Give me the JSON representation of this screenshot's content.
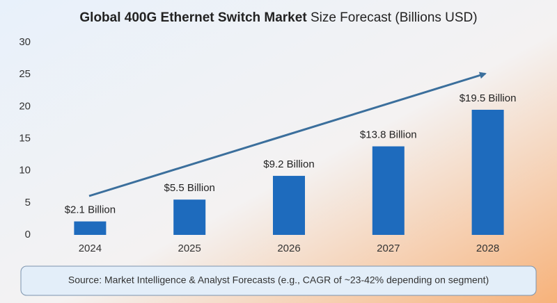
{
  "chart_data": {
    "type": "bar",
    "title": [
      "Global 400G Ethernet Switch Market",
      "Size Forecast (Billions USD)"
    ],
    "categories": [
      "2024",
      "2025",
      "2026",
      "2027",
      "2028"
    ],
    "values": [
      2.1,
      5.5,
      9.2,
      13.8,
      19.5
    ],
    "value_labels": [
      "$2.1 Billion",
      "$5.5 Billion",
      "$9.2 Billion",
      "$13.8 Billion",
      "$19.5 Billion"
    ],
    "color": "#1e6bbd",
    "ylim": [
      0,
      30
    ],
    "yticks": [
      0,
      5,
      10,
      15,
      20,
      25,
      30
    ],
    "grid": false,
    "source": "Source: Market Intelligence & Analyst Forecasts (e.g., CAGR of ~23-42% depending on segment)"
  }
}
